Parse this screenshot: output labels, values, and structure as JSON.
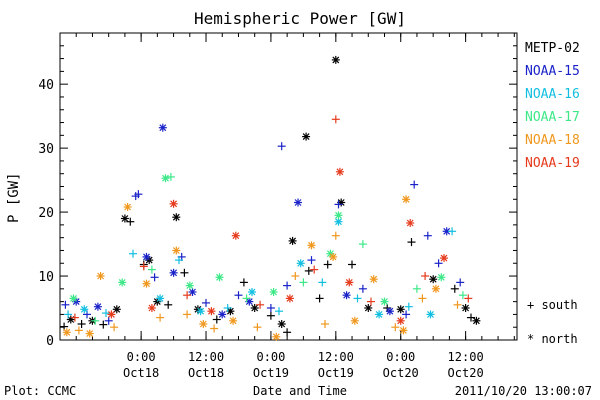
{
  "chart_data": {
    "type": "scatter",
    "title": "Hemispheric Power [GW]",
    "ylabel": "P [GW]",
    "xlabel": "Date and Time",
    "ylim": [
      0,
      48
    ],
    "xlim": [
      "2011-10-17 09:00",
      "2011-10-20 21:30"
    ],
    "y_ticks": [
      0,
      10,
      20,
      30,
      40
    ],
    "x_ticks": [
      {
        "value": "2011-10-18 00:00",
        "time": "0:00",
        "date": "Oct18"
      },
      {
        "value": "2011-10-18 12:00",
        "time": "12:00",
        "date": "Oct18"
      },
      {
        "value": "2011-10-19 00:00",
        "time": "0:00",
        "date": "Oct19"
      },
      {
        "value": "2011-10-19 12:00",
        "time": "12:00",
        "date": "Oct19"
      },
      {
        "value": "2011-10-20 00:00",
        "time": "0:00",
        "date": "Oct20"
      },
      {
        "value": "2011-10-20 12:00",
        "time": "12:00",
        "date": "Oct20"
      }
    ],
    "grid": false,
    "legend_position": "right",
    "marker_key": {
      "south": "south",
      "north": "north"
    },
    "series": [
      {
        "name": "METP-02",
        "color": "#000000",
        "points": [
          [
            "2011-10-17 09:45",
            2.1,
            "+"
          ],
          [
            "2011-10-17 11:00",
            3.2,
            "*"
          ],
          [
            "2011-10-17 13:00",
            2.5,
            "+"
          ],
          [
            "2011-10-17 15:00",
            3.0,
            "*"
          ],
          [
            "2011-10-17 17:00",
            2.4,
            "+"
          ],
          [
            "2011-10-17 19:30",
            4.8,
            "*"
          ],
          [
            "2011-10-17 21:00",
            19.0,
            "*"
          ],
          [
            "2011-10-17 22:00",
            18.5,
            "+"
          ],
          [
            "2011-10-18 00:30",
            11.8,
            "+"
          ],
          [
            "2011-10-18 01:30",
            12.5,
            "*"
          ],
          [
            "2011-10-18 03:00",
            6.0,
            "*"
          ],
          [
            "2011-10-18 05:00",
            5.5,
            "+"
          ],
          [
            "2011-10-18 06:30",
            19.2,
            "*"
          ],
          [
            "2011-10-18 08:00",
            10.5,
            "+"
          ],
          [
            "2011-10-18 10:30",
            4.8,
            "*"
          ],
          [
            "2011-10-18 14:00",
            3.2,
            "+"
          ],
          [
            "2011-10-18 16:30",
            4.5,
            "*"
          ],
          [
            "2011-10-18 19:00",
            9.0,
            "+"
          ],
          [
            "2011-10-18 21:00",
            5.0,
            "*"
          ],
          [
            "2011-10-19 00:00",
            3.8,
            "+"
          ],
          [
            "2011-10-19 02:00",
            2.5,
            "*"
          ],
          [
            "2011-10-19 03:00",
            1.2,
            "+"
          ],
          [
            "2011-10-19 04:00",
            15.5,
            "*"
          ],
          [
            "2011-10-19 06:30",
            31.8,
            "*"
          ],
          [
            "2011-10-19 07:00",
            10.8,
            "+"
          ],
          [
            "2011-10-19 09:00",
            6.5,
            "+"
          ],
          [
            "2011-10-19 10:30",
            11.8,
            "+"
          ],
          [
            "2011-10-19 12:00",
            43.8,
            "*"
          ],
          [
            "2011-10-19 13:00",
            21.5,
            "*"
          ],
          [
            "2011-10-19 15:00",
            11.8,
            "+"
          ],
          [
            "2011-10-19 18:00",
            5.0,
            "*"
          ],
          [
            "2011-10-19 21:30",
            5.0,
            "+"
          ],
          [
            "2011-10-20 00:00",
            4.8,
            "*"
          ],
          [
            "2011-10-20 02:00",
            15.3,
            "+"
          ],
          [
            "2011-10-20 06:00",
            9.5,
            "*"
          ],
          [
            "2011-10-20 10:00",
            8.0,
            "+"
          ],
          [
            "2011-10-20 12:00",
            5.0,
            "*"
          ],
          [
            "2011-10-20 13:00",
            3.5,
            "+"
          ],
          [
            "2011-10-20 14:00",
            3.0,
            "*"
          ]
        ]
      },
      {
        "name": "NOAA-15",
        "color": "#1a23c8",
        "points": [
          [
            "2011-10-17 10:00",
            5.5,
            "+"
          ],
          [
            "2011-10-17 12:00",
            6.0,
            "*"
          ],
          [
            "2011-10-17 14:00",
            4.0,
            "+"
          ],
          [
            "2011-10-17 16:00",
            5.2,
            "*"
          ],
          [
            "2011-10-17 18:00",
            3.0,
            "+"
          ],
          [
            "2011-10-17 23:00",
            22.5,
            "+"
          ],
          [
            "2011-10-17 23:30",
            22.8,
            "+"
          ],
          [
            "2011-10-18 01:00",
            13.0,
            "*"
          ],
          [
            "2011-10-18 02:30",
            9.8,
            "+"
          ],
          [
            "2011-10-18 04:00",
            33.2,
            "*"
          ],
          [
            "2011-10-18 06:00",
            10.5,
            "*"
          ],
          [
            "2011-10-18 07:30",
            13.0,
            "+"
          ],
          [
            "2011-10-18 09:30",
            7.5,
            "*"
          ],
          [
            "2011-10-18 12:00",
            5.8,
            "+"
          ],
          [
            "2011-10-18 15:00",
            4.0,
            "*"
          ],
          [
            "2011-10-18 18:00",
            7.0,
            "+"
          ],
          [
            "2011-10-18 20:00",
            6.0,
            "*"
          ],
          [
            "2011-10-19 00:00",
            5.0,
            "+"
          ],
          [
            "2011-10-19 02:00",
            30.3,
            "+"
          ],
          [
            "2011-10-19 03:00",
            8.5,
            "+"
          ],
          [
            "2011-10-19 05:00",
            21.5,
            "*"
          ],
          [
            "2011-10-19 07:30",
            12.5,
            "+"
          ],
          [
            "2011-10-19 12:30",
            21.2,
            "+"
          ],
          [
            "2011-10-19 14:00",
            7.0,
            "*"
          ],
          [
            "2011-10-19 17:00",
            8.0,
            "+"
          ],
          [
            "2011-10-19 22:00",
            4.5,
            "*"
          ],
          [
            "2011-10-20 01:00",
            4.0,
            "+"
          ],
          [
            "2011-10-20 02:30",
            24.3,
            "+"
          ],
          [
            "2011-10-20 05:00",
            16.3,
            "+"
          ],
          [
            "2011-10-20 07:00",
            12.0,
            "+"
          ],
          [
            "2011-10-20 08:30",
            17.0,
            "*"
          ],
          [
            "2011-10-20 11:00",
            9.0,
            "+"
          ]
        ]
      },
      {
        "name": "NOAA-16",
        "color": "#12bfe0",
        "points": [
          [
            "2011-10-17 10:30",
            4.0,
            "+"
          ],
          [
            "2011-10-17 13:30",
            4.8,
            "*"
          ],
          [
            "2011-10-17 17:30",
            4.2,
            "+"
          ],
          [
            "2011-10-17 22:30",
            13.5,
            "+"
          ],
          [
            "2011-10-18 03:30",
            6.5,
            "*"
          ],
          [
            "2011-10-18 07:00",
            12.5,
            "+"
          ],
          [
            "2011-10-18 11:00",
            4.5,
            "*"
          ],
          [
            "2011-10-18 16:00",
            5.0,
            "+"
          ],
          [
            "2011-10-18 20:30",
            7.5,
            "*"
          ],
          [
            "2011-10-19 01:30",
            4.5,
            "+"
          ],
          [
            "2011-10-19 05:30",
            12.0,
            "*"
          ],
          [
            "2011-10-19 09:30",
            9.0,
            "+"
          ],
          [
            "2011-10-19 12:30",
            18.5,
            "*"
          ],
          [
            "2011-10-19 16:00",
            6.5,
            "+"
          ],
          [
            "2011-10-19 20:00",
            4.0,
            "*"
          ],
          [
            "2011-10-20 01:30",
            5.2,
            "+"
          ],
          [
            "2011-10-20 05:30",
            4.0,
            "*"
          ],
          [
            "2011-10-20 09:30",
            17.0,
            "+"
          ]
        ]
      },
      {
        "name": "NOAA-17",
        "color": "#3ee888",
        "points": [
          [
            "2011-10-17 11:30",
            6.5,
            "*"
          ],
          [
            "2011-10-17 15:30",
            3.0,
            "+"
          ],
          [
            "2011-10-17 20:30",
            9.0,
            "*"
          ],
          [
            "2011-10-18 02:00",
            11.0,
            "+"
          ],
          [
            "2011-10-18 04:30",
            25.3,
            "*"
          ],
          [
            "2011-10-18 05:30",
            25.5,
            "+"
          ],
          [
            "2011-10-18 09:00",
            8.5,
            "*"
          ],
          [
            "2011-10-18 14:30",
            9.8,
            "*"
          ],
          [
            "2011-10-18 19:30",
            6.5,
            "+"
          ],
          [
            "2011-10-19 00:30",
            7.5,
            "*"
          ],
          [
            "2011-10-19 06:00",
            9.0,
            "+"
          ],
          [
            "2011-10-19 11:00",
            13.5,
            "*"
          ],
          [
            "2011-10-19 12:30",
            19.5,
            "*"
          ],
          [
            "2011-10-19 17:00",
            15.0,
            "+"
          ],
          [
            "2011-10-19 21:00",
            6.0,
            "*"
          ],
          [
            "2011-10-20 03:00",
            8.0,
            "+"
          ],
          [
            "2011-10-20 07:30",
            9.8,
            "*"
          ],
          [
            "2011-10-20 11:30",
            7.0,
            "+"
          ]
        ]
      },
      {
        "name": "NOAA-18",
        "color": "#f0981e",
        "points": [
          [
            "2011-10-17 10:15",
            1.2,
            "*"
          ],
          [
            "2011-10-17 12:30",
            1.5,
            "+"
          ],
          [
            "2011-10-17 14:30",
            1.0,
            "*"
          ],
          [
            "2011-10-17 16:30",
            10.0,
            "*"
          ],
          [
            "2011-10-17 19:00",
            2.0,
            "+"
          ],
          [
            "2011-10-17 21:30",
            20.8,
            "*"
          ],
          [
            "2011-10-18 01:00",
            8.8,
            "*"
          ],
          [
            "2011-10-18 03:30",
            3.5,
            "+"
          ],
          [
            "2011-10-18 06:30",
            14.0,
            "*"
          ],
          [
            "2011-10-18 08:30",
            4.0,
            "+"
          ],
          [
            "2011-10-18 11:30",
            2.5,
            "*"
          ],
          [
            "2011-10-18 13:30",
            1.8,
            "+"
          ],
          [
            "2011-10-18 17:00",
            3.0,
            "*"
          ],
          [
            "2011-10-18 21:30",
            2.0,
            "+"
          ],
          [
            "2011-10-19 01:00",
            0.5,
            "*"
          ],
          [
            "2011-10-19 04:30",
            10.0,
            "+"
          ],
          [
            "2011-10-19 07:30",
            14.8,
            "*"
          ],
          [
            "2011-10-19 10:00",
            2.5,
            "+"
          ],
          [
            "2011-10-19 11:30",
            13.0,
            "*"
          ],
          [
            "2011-10-19 12:00",
            16.3,
            "+"
          ],
          [
            "2011-10-19 15:30",
            3.0,
            "*"
          ],
          [
            "2011-10-19 19:00",
            9.5,
            "*"
          ],
          [
            "2011-10-19 23:00",
            2.0,
            "+"
          ],
          [
            "2011-10-20 00:30",
            1.5,
            "*"
          ],
          [
            "2011-10-20 01:00",
            22.0,
            "*"
          ],
          [
            "2011-10-20 04:00",
            6.5,
            "+"
          ],
          [
            "2011-10-20 06:30",
            8.0,
            "*"
          ],
          [
            "2011-10-20 10:30",
            5.5,
            "+"
          ]
        ]
      },
      {
        "name": "NOAA-19",
        "color": "#e63a1c",
        "points": [
          [
            "2011-10-17 11:45",
            3.5,
            "+"
          ],
          [
            "2011-10-17 18:30",
            4.0,
            "*"
          ],
          [
            "2011-10-18 00:30",
            11.5,
            "+"
          ],
          [
            "2011-10-18 02:00",
            5.0,
            "*"
          ],
          [
            "2011-10-18 06:00",
            21.3,
            "*"
          ],
          [
            "2011-10-18 08:30",
            7.0,
            "+"
          ],
          [
            "2011-10-18 13:00",
            4.5,
            "*"
          ],
          [
            "2011-10-18 17:30",
            16.3,
            "*"
          ],
          [
            "2011-10-18 22:00",
            5.5,
            "+"
          ],
          [
            "2011-10-19 03:30",
            6.5,
            "*"
          ],
          [
            "2011-10-19 08:00",
            11.0,
            "+"
          ],
          [
            "2011-10-19 12:00",
            34.5,
            "+"
          ],
          [
            "2011-10-19 12:45",
            26.3,
            "*"
          ],
          [
            "2011-10-19 14:30",
            9.0,
            "*"
          ],
          [
            "2011-10-19 18:30",
            6.0,
            "+"
          ],
          [
            "2011-10-20 00:00",
            3.0,
            "*"
          ],
          [
            "2011-10-20 01:45",
            18.3,
            "*"
          ],
          [
            "2011-10-20 04:30",
            10.0,
            "+"
          ],
          [
            "2011-10-20 08:00",
            12.8,
            "*"
          ],
          [
            "2011-10-20 12:30",
            6.5,
            "+"
          ]
        ]
      }
    ]
  },
  "footer": {
    "credit": "Plot: CCMC",
    "timestamp": "2011/10/20 13:00:07"
  }
}
